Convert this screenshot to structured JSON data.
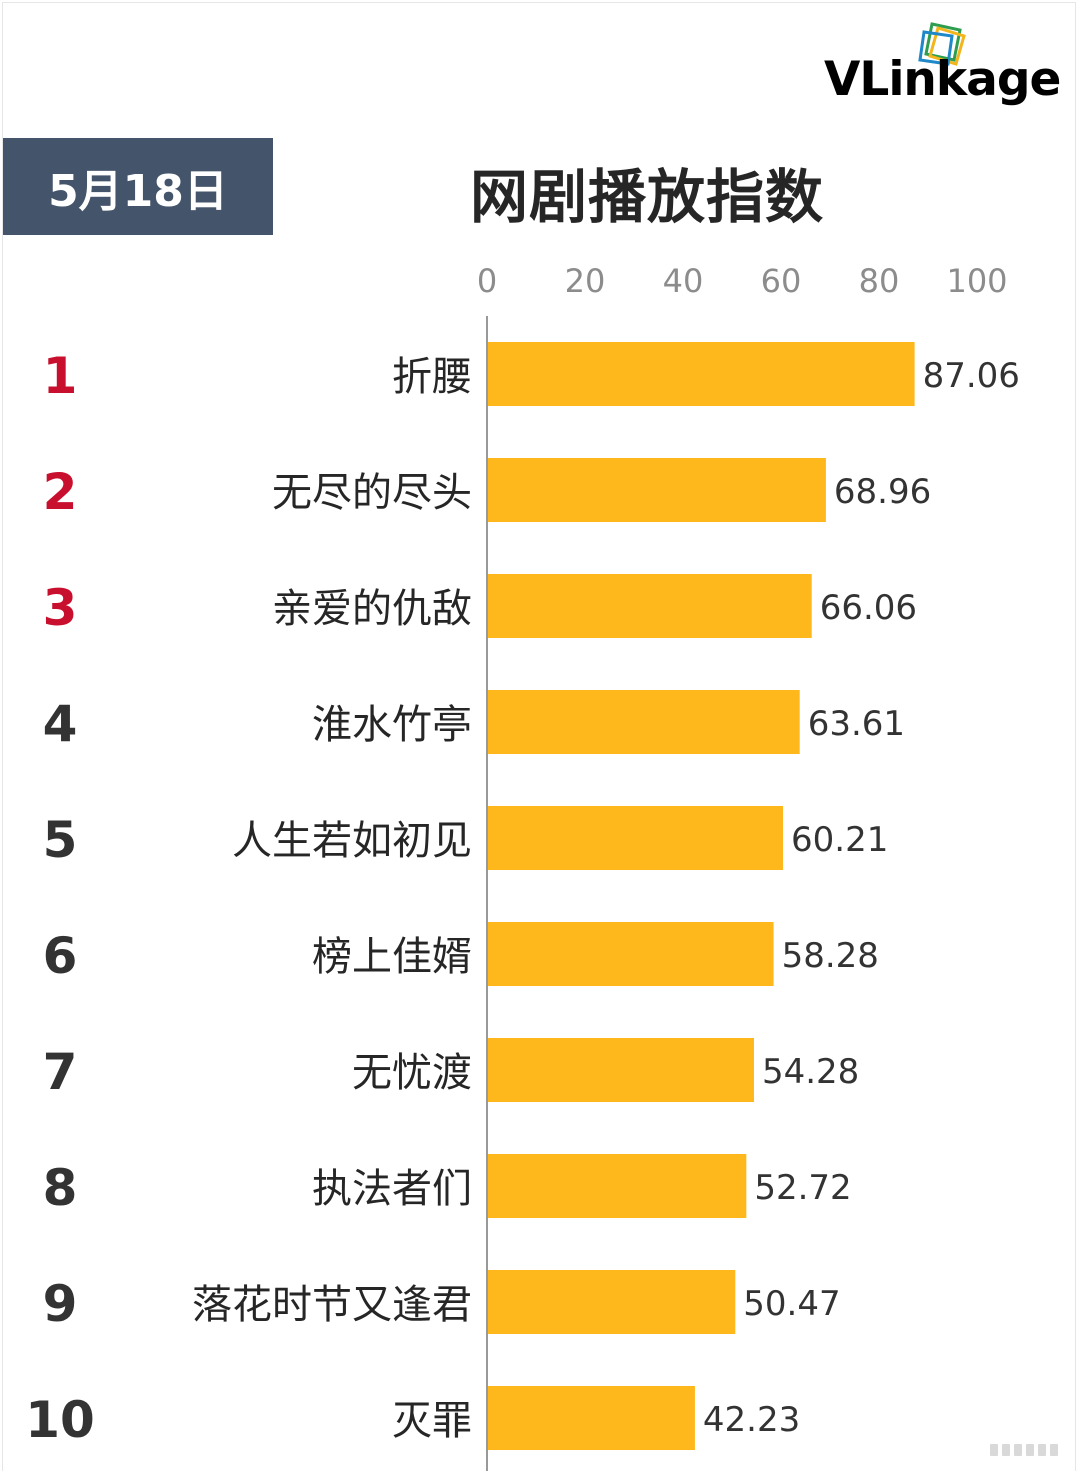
{
  "header": {
    "logo_text": "VLinkage",
    "date_label": "5月18日",
    "title": "网剧播放指数"
  },
  "colors": {
    "bar": "#FFB81C",
    "rank_top": "#C8102E",
    "rank_other": "#333333",
    "badge_bg": "#44546A",
    "axis": "#999999",
    "tick_text": "#8c8c8c"
  },
  "chart_data": {
    "type": "bar",
    "orientation": "horizontal",
    "title": "网剧播放指数",
    "xlim": [
      0,
      100
    ],
    "xticks": [
      0,
      20,
      40,
      60,
      80,
      100
    ],
    "xtick_labels": [
      "0",
      "20",
      "40",
      "60",
      "80",
      "100"
    ],
    "axis_position": "top",
    "grid": false,
    "ranks": [
      "1",
      "2",
      "3",
      "4",
      "5",
      "6",
      "7",
      "8",
      "9",
      "10"
    ],
    "categories": [
      "折腰",
      "无尽的尽头",
      "亲爱的仇敌",
      "淮水竹亭",
      "人生若如初见",
      "榜上佳婿",
      "无忧渡",
      "执法者们",
      "落花时节又逢君",
      "灭罪"
    ],
    "values": [
      87.06,
      68.96,
      66.06,
      63.61,
      60.21,
      58.28,
      54.28,
      52.72,
      50.47,
      42.23
    ],
    "value_labels": [
      "87.06",
      "68.96",
      "66.06",
      "63.61",
      "60.21",
      "58.28",
      "54.28",
      "52.72",
      "50.47",
      "42.23"
    ]
  }
}
